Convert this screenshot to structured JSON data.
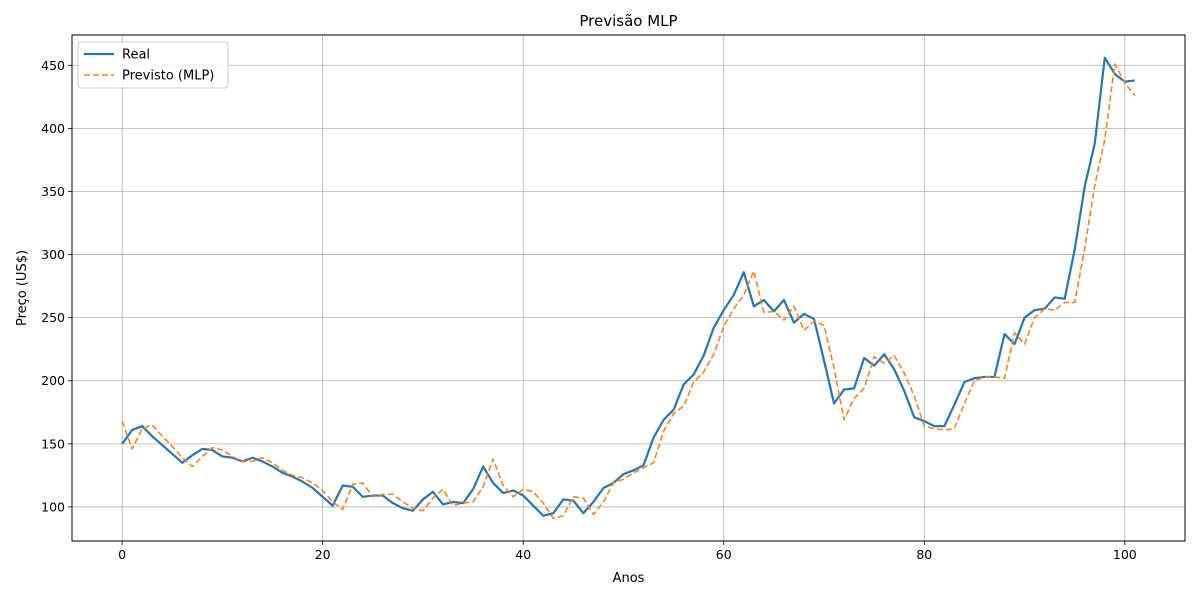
{
  "chart_data": {
    "type": "line",
    "title": "Previsão MLP",
    "xlabel": "Anos",
    "ylabel": "Preço (US$)",
    "xlim": [
      -5,
      106
    ],
    "ylim": [
      73,
      474
    ],
    "xticks": [
      0,
      20,
      40,
      60,
      80,
      100
    ],
    "yticks": [
      100,
      150,
      200,
      250,
      300,
      350,
      400,
      450
    ],
    "grid": true,
    "legend_position": "top-left",
    "series": [
      {
        "name": "Real",
        "color": "#1f77b4",
        "style": "solid",
        "x": [
          0,
          1,
          2,
          3,
          4,
          5,
          6,
          7,
          8,
          9,
          10,
          11,
          12,
          13,
          14,
          15,
          16,
          17,
          18,
          19,
          20,
          21,
          22,
          23,
          24,
          25,
          26,
          27,
          28,
          29,
          30,
          31,
          32,
          33,
          34,
          35,
          36,
          37,
          38,
          39,
          40,
          41,
          42,
          43,
          44,
          45,
          46,
          47,
          48,
          49,
          50,
          51,
          52,
          53,
          54,
          55,
          56,
          57,
          58,
          59,
          60,
          61,
          62,
          63,
          64,
          65,
          66,
          67,
          68,
          69,
          70,
          71,
          72,
          73,
          74,
          75,
          76,
          77,
          78,
          79,
          80,
          81,
          82,
          83,
          84,
          85,
          86,
          87,
          88,
          89,
          90,
          91,
          92,
          93,
          94,
          95,
          96,
          97,
          98,
          99,
          100,
          101
        ],
        "y": [
          150,
          161,
          164,
          156,
          149,
          142,
          135,
          141,
          146,
          145,
          140,
          139,
          136,
          139,
          136,
          132,
          127,
          124,
          120,
          115,
          108,
          101,
          117,
          116,
          108,
          109,
          109,
          103,
          99,
          97,
          106,
          112,
          102,
          104,
          103,
          114,
          132,
          119,
          111,
          113,
          109,
          101,
          93,
          95,
          106,
          105,
          95,
          104,
          115,
          119,
          126,
          129,
          133,
          155,
          169,
          177,
          197,
          205,
          220,
          242,
          256,
          268,
          286,
          259,
          264,
          255,
          264,
          246,
          253,
          249,
          216,
          182,
          193,
          194,
          218,
          212,
          221,
          209,
          192,
          171,
          168,
          164,
          164,
          181,
          199,
          202,
          203,
          203,
          237,
          229,
          250,
          256,
          257,
          266,
          265,
          304,
          354,
          388,
          456,
          443,
          437,
          438
        ]
      },
      {
        "name": "Previsto (MLP)",
        "color": "#ff7f0e",
        "style": "dashed",
        "x": [
          0,
          1,
          2,
          3,
          4,
          5,
          6,
          7,
          8,
          9,
          10,
          11,
          12,
          13,
          14,
          15,
          16,
          17,
          18,
          19,
          20,
          21,
          22,
          23,
          24,
          25,
          26,
          27,
          28,
          29,
          30,
          31,
          32,
          33,
          34,
          35,
          36,
          37,
          38,
          39,
          40,
          41,
          42,
          43,
          44,
          45,
          46,
          47,
          48,
          49,
          50,
          51,
          52,
          53,
          54,
          55,
          56,
          57,
          58,
          59,
          60,
          61,
          62,
          63,
          64,
          65,
          66,
          67,
          68,
          69,
          70,
          71,
          72,
          73,
          74,
          75,
          76,
          77,
          78,
          79,
          80,
          81,
          82,
          83,
          84,
          85,
          86,
          87,
          88,
          89,
          90,
          91,
          92,
          93,
          94,
          95,
          96,
          97,
          98,
          99,
          100,
          101
        ],
        "y": [
          168,
          146,
          162,
          165,
          156,
          148,
          139,
          132,
          140,
          147,
          145,
          140,
          136,
          136,
          139,
          135,
          129,
          125,
          123,
          119,
          113,
          104,
          98,
          118,
          119,
          108,
          110,
          110,
          104,
          99,
          97,
          107,
          114,
          101,
          103,
          104,
          116,
          138,
          117,
          108,
          114,
          112,
          103,
          91,
          93,
          108,
          107,
          94,
          104,
          119,
          122,
          127,
          131,
          135,
          160,
          174,
          180,
          199,
          207,
          221,
          243,
          257,
          268,
          287,
          254,
          255,
          248,
          259,
          240,
          247,
          244,
          210,
          169,
          186,
          194,
          219,
          214,
          220,
          206,
          188,
          164,
          162,
          161,
          162,
          182,
          200,
          203,
          203,
          202,
          238,
          229,
          250,
          257,
          256,
          262,
          262,
          305,
          355,
          391,
          451,
          436,
          426
        ]
      }
    ]
  }
}
